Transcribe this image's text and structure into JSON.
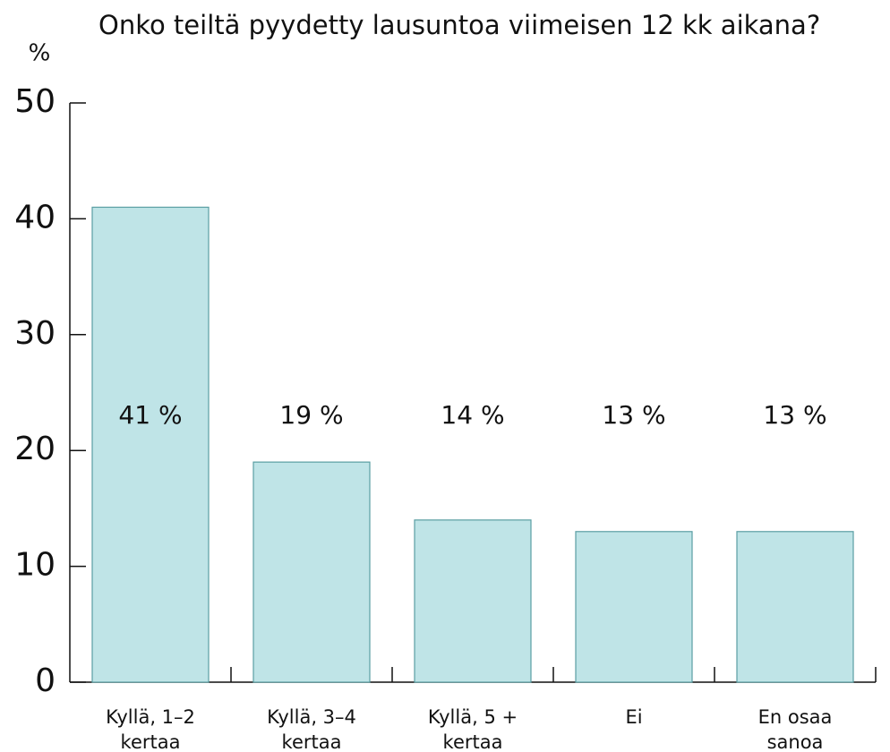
{
  "chart_data": {
    "type": "bar",
    "title": "Onko teiltä pyydetty lausuntoa viimeisen 12 kk aikana?",
    "y_label": "%",
    "categories": [
      [
        "Kyllä, 1–2",
        "kertaa"
      ],
      [
        "Kyllä, 3–4",
        "kertaa"
      ],
      [
        "Kyllä, 5 +",
        "kertaa"
      ],
      [
        "Ei"
      ],
      [
        "En osaa",
        "sanoa"
      ]
    ],
    "values": [
      41,
      19,
      14,
      13,
      13
    ],
    "value_labels": [
      "41 %",
      "19 %",
      "14 %",
      "13 %",
      "13 %"
    ],
    "color": "#bfe4e7",
    "ylim": [
      0,
      50
    ],
    "yticks": [
      0,
      10,
      20,
      30,
      40,
      50
    ],
    "grid": false
  }
}
